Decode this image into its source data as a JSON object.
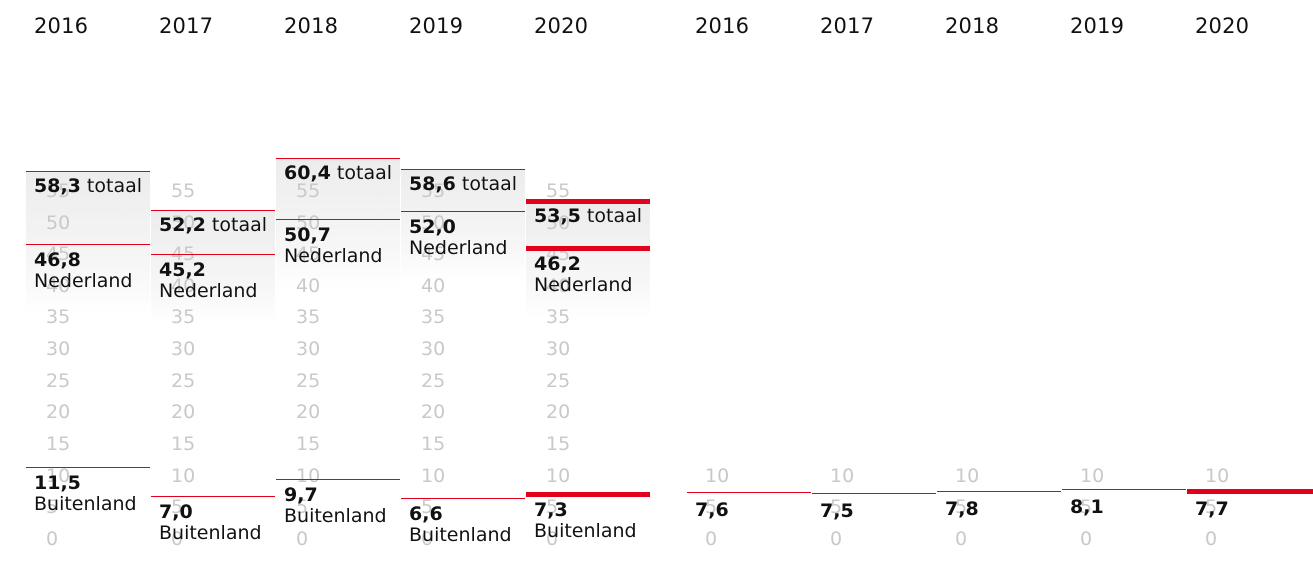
{
  "accent_color": "#e2001a",
  "chart_data": [
    {
      "type": "bar",
      "categories": [
        "2016",
        "2017",
        "2018",
        "2019",
        "2020"
      ],
      "highlight_category": "2020",
      "series": [
        {
          "name": "Nederland",
          "values": [
            46.8,
            45.2,
            50.7,
            52.0,
            46.2
          ]
        },
        {
          "name": "Buitenland",
          "values": [
            11.5,
            7.0,
            9.7,
            6.6,
            7.3
          ]
        },
        {
          "name": "totaal",
          "values": [
            58.3,
            52.2,
            60.4,
            58.6,
            53.5
          ]
        }
      ],
      "value_labels": {
        "totaal": [
          "58,3",
          "52,2",
          "60,4",
          "58,6",
          "53,5"
        ],
        "Nederland": [
          "46,8",
          "45,2",
          "50,7",
          "52,0",
          "46,2"
        ],
        "Buitenland": [
          "11,5",
          "7,0",
          "9,7",
          "6,6",
          "7,3"
        ]
      },
      "label_suffix_totaal": "totaal",
      "y_ticks": [
        0,
        5,
        10,
        15,
        20,
        25,
        30,
        35,
        40,
        45,
        50,
        55
      ],
      "ylim": [
        0,
        60
      ]
    },
    {
      "type": "bar",
      "categories": [
        "2016",
        "2017",
        "2018",
        "2019",
        "2020"
      ],
      "highlight_category": "2020",
      "values": [
        7.6,
        7.5,
        7.8,
        8.1,
        7.7
      ],
      "value_labels": [
        "7,6",
        "7,5",
        "7,8",
        "8,1",
        "7,7"
      ],
      "y_ticks": [
        0,
        5,
        10
      ],
      "ylim": [
        0,
        10
      ]
    }
  ]
}
